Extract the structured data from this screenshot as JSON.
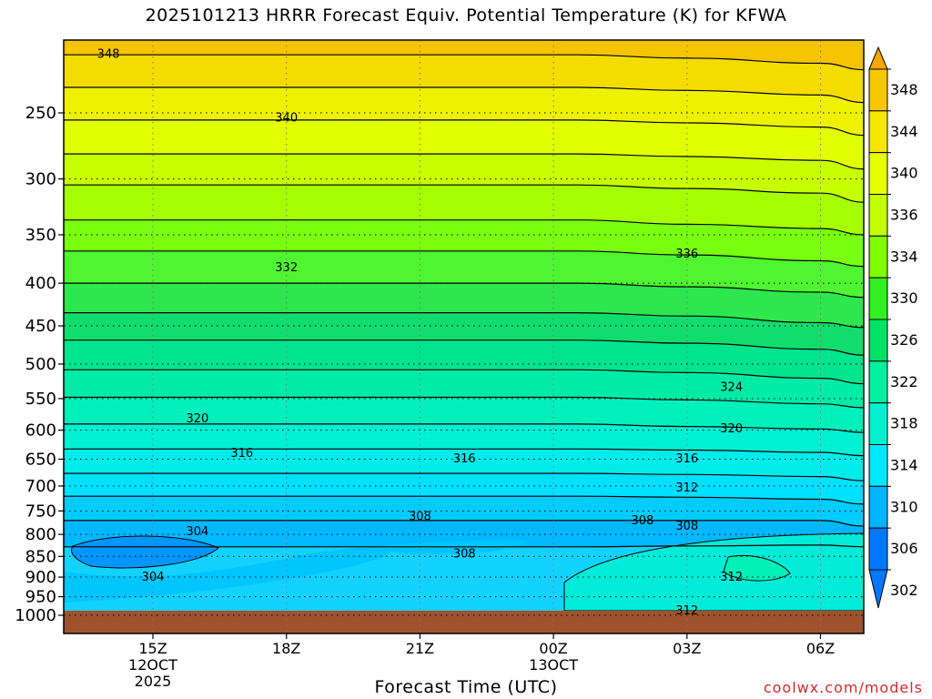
{
  "header": {
    "title": "2025101213 HRRR Forecast Equiv. Potential Temperature (K) for KFWA"
  },
  "footer": {
    "xlabel": "Forecast Time (UTC)",
    "credit": "coolwx.com/models"
  },
  "chart_data": {
    "type": "contour",
    "title": "2025101213 HRRR Forecast Equiv. Potential Temperature (K) for KFWA",
    "xlabel": "Forecast Time (UTC)",
    "ylabel": "",
    "y_scale": "log-pressure (hPa), inverted",
    "x_ticks": [
      {
        "lines": [
          "15Z",
          "12OCT",
          "2025"
        ]
      },
      {
        "lines": [
          "18Z"
        ]
      },
      {
        "lines": [
          "21Z"
        ]
      },
      {
        "lines": [
          "00Z",
          "13OCT"
        ]
      },
      {
        "lines": [
          "03Z"
        ]
      },
      {
        "lines": [
          "06Z"
        ]
      }
    ],
    "y_ticks": [
      250,
      300,
      350,
      400,
      450,
      500,
      550,
      600,
      650,
      700,
      750,
      800,
      850,
      900,
      950,
      1000
    ],
    "colorbar": {
      "labels": [
        348,
        344,
        340,
        336,
        334,
        330,
        326,
        322,
        318,
        314,
        310,
        306,
        302
      ],
      "colors": [
        "#f4a800",
        "#f7c800",
        "#f4e800",
        "#e8ff00",
        "#c2ff00",
        "#7fff00",
        "#33ee22",
        "#00e266",
        "#00f0a0",
        "#00f0d0",
        "#00e8ff",
        "#00b4ff",
        "#0078ff"
      ],
      "extend": "both"
    },
    "contour_labels": [
      {
        "value": 348,
        "time": "14Z",
        "pressure": 212
      },
      {
        "value": 340,
        "time": "18Z",
        "pressure": 253
      },
      {
        "value": 332,
        "time": "18Z",
        "pressure": 382
      },
      {
        "value": 336,
        "time": "03Z",
        "pressure": 368
      },
      {
        "value": 324,
        "time": "04Z",
        "pressure": 532
      },
      {
        "value": 320,
        "time": "16Z",
        "pressure": 580
      },
      {
        "value": 320,
        "time": "04Z",
        "pressure": 596
      },
      {
        "value": 316,
        "time": "17Z",
        "pressure": 638
      },
      {
        "value": 316,
        "time": "22Z",
        "pressure": 648
      },
      {
        "value": 316,
        "time": "03Z",
        "pressure": 648
      },
      {
        "value": 312,
        "time": "03Z",
        "pressure": 702
      },
      {
        "value": 308,
        "time": "21Z",
        "pressure": 760
      },
      {
        "value": 308,
        "time": "02Z",
        "pressure": 768
      },
      {
        "value": 308,
        "time": "03Z",
        "pressure": 780
      },
      {
        "value": 304,
        "time": "16Z",
        "pressure": 792
      },
      {
        "value": 308,
        "time": "22Z",
        "pressure": 842
      },
      {
        "value": 304,
        "time": "15Z",
        "pressure": 898
      },
      {
        "value": 312,
        "time": "04Z",
        "pressure": 898
      },
      {
        "value": 312,
        "time": "03Z",
        "pressure": 985
      }
    ]
  }
}
